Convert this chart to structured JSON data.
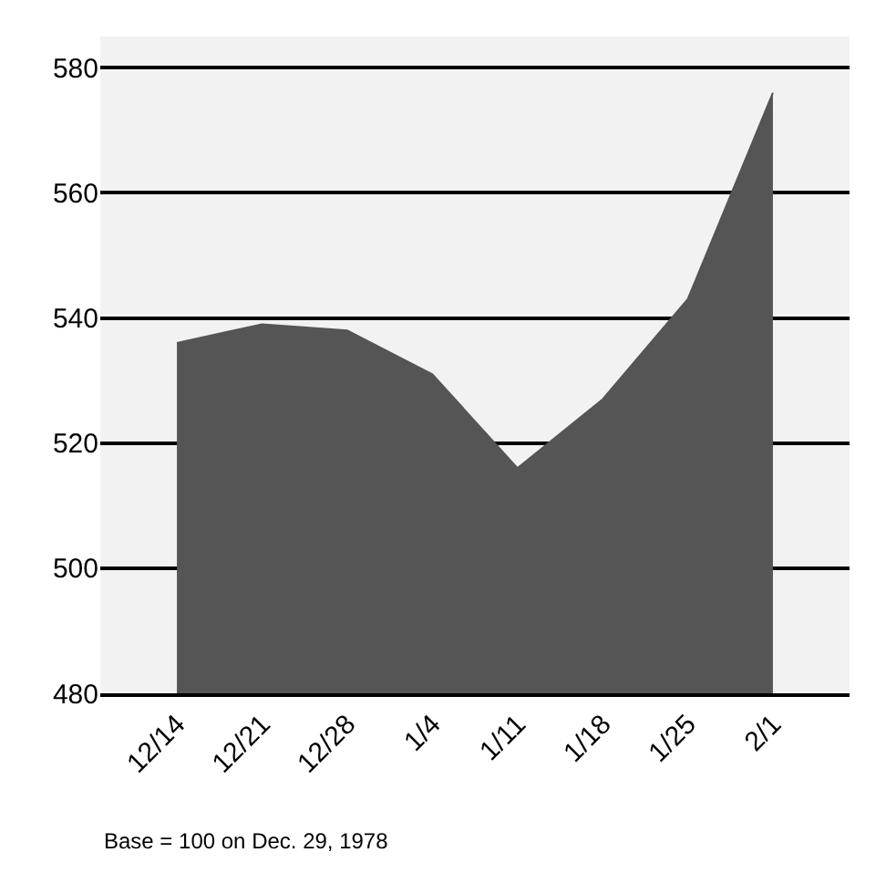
{
  "chart_data": {
    "type": "area",
    "categories": [
      "12/14",
      "12/21",
      "12/28",
      "1/4",
      "1/11",
      "1/18",
      "1/25",
      "2/1"
    ],
    "series": [
      {
        "color": "#555555",
        "values": [
          536,
          539,
          538,
          531,
          516,
          527,
          543,
          576
        ]
      }
    ],
    "ylim": [
      480,
      585
    ],
    "yticks": [
      480,
      500,
      520,
      540,
      560,
      580
    ],
    "grid": "y",
    "annotations": [
      "Base = 100 on Dec. 29, 1978"
    ]
  }
}
